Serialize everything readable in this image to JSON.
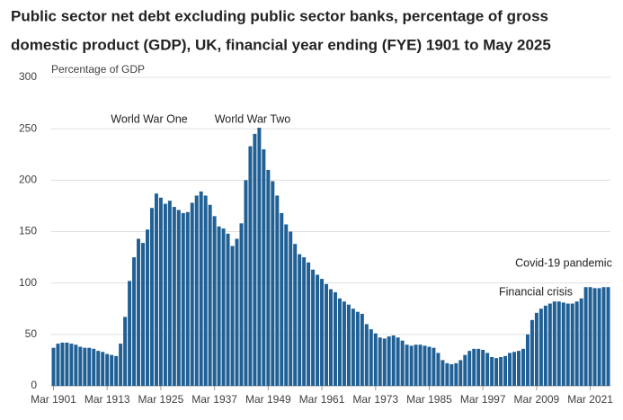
{
  "chart_data": {
    "type": "bar",
    "title_lines": [
      "Public sector net debt excluding public sector banks, percentage of gross",
      "domestic product (GDP), UK, financial year ending (FYE) 1901 to May 2025"
    ],
    "y_axis_label": "Percentage of GDP",
    "annotations": [
      "World War One",
      "World War Two",
      "Financial crisis",
      "Covid-19 pandemic"
    ],
    "categories": [
      "Mar 1901",
      null,
      null,
      null,
      null,
      null,
      null,
      null,
      null,
      null,
      null,
      null,
      "Mar 1913",
      null,
      null,
      null,
      null,
      null,
      null,
      null,
      null,
      null,
      null,
      null,
      "Mar 1925",
      null,
      null,
      null,
      null,
      null,
      null,
      null,
      null,
      null,
      null,
      null,
      "Mar 1937",
      null,
      null,
      null,
      null,
      null,
      null,
      null,
      null,
      null,
      null,
      null,
      "Mar 1949",
      null,
      null,
      null,
      null,
      null,
      null,
      null,
      null,
      null,
      null,
      null,
      "Mar 1961",
      null,
      null,
      null,
      null,
      null,
      null,
      null,
      null,
      null,
      null,
      null,
      "Mar 1973",
      null,
      null,
      null,
      null,
      null,
      null,
      null,
      null,
      null,
      null,
      null,
      "Mar 1985",
      null,
      null,
      null,
      null,
      null,
      null,
      null,
      null,
      null,
      null,
      null,
      "Mar 1997",
      null,
      null,
      null,
      null,
      null,
      null,
      null,
      null,
      null,
      null,
      null,
      "Mar 2009",
      null,
      null,
      null,
      null,
      null,
      null,
      null,
      null,
      null,
      null,
      null,
      "Mar 2021",
      null,
      null,
      null,
      null
    ],
    "values": [
      37,
      41,
      42,
      42,
      41,
      40,
      38,
      37,
      37,
      36,
      34,
      33,
      31,
      30,
      29,
      41,
      67,
      102,
      125,
      143,
      139,
      152,
      173,
      187,
      183,
      177,
      180,
      174,
      171,
      168,
      169,
      178,
      185,
      189,
      185,
      176,
      165,
      155,
      153,
      148,
      136,
      143,
      158,
      200,
      233,
      245,
      251,
      230,
      210,
      199,
      185,
      168,
      157,
      150,
      138,
      128,
      125,
      120,
      113,
      108,
      104,
      99,
      94,
      91,
      85,
      82,
      79,
      75,
      72,
      70,
      60,
      55,
      51,
      47,
      46,
      48,
      49,
      47,
      44,
      40,
      39,
      40,
      40,
      39,
      38,
      37,
      32,
      25,
      22,
      21,
      22,
      25,
      30,
      34,
      36,
      36,
      35,
      32,
      28,
      27,
      28,
      29,
      32,
      33,
      34,
      36,
      50,
      64,
      71,
      75,
      78,
      80,
      82,
      82,
      81,
      80,
      80,
      82,
      85,
      96,
      96,
      95,
      95,
      96,
      96
    ],
    "color": "#206095",
    "ylim": [
      0,
      300
    ],
    "yticks": [
      0,
      50,
      100,
      150,
      200,
      250,
      300
    ],
    "grid": true
  }
}
